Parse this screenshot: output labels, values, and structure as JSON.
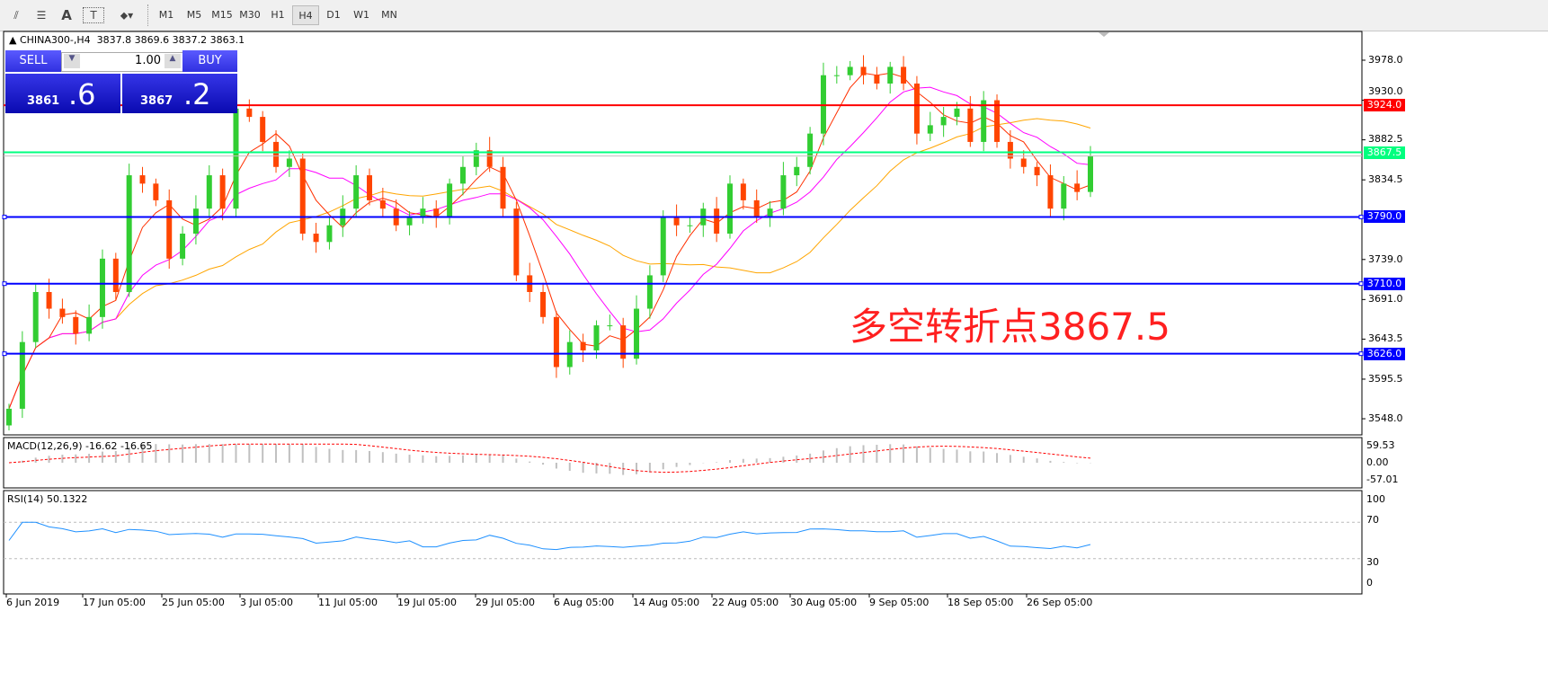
{
  "toolbar": {
    "tools": [
      "line-studies-icon",
      "fibonacci-icon",
      "text-icon",
      "text-label-icon",
      "arrows-icon"
    ],
    "timeframes": [
      "M1",
      "M5",
      "M15",
      "M30",
      "H1",
      "H4",
      "D1",
      "W1",
      "MN"
    ],
    "active": "H4"
  },
  "header": {
    "symbol": "CHINA300-,H4",
    "ohlc": "3837.8 3869.6 3837.2 3863.1"
  },
  "trade": {
    "sell": "SELL",
    "buy": "BUY",
    "lot": "1.00",
    "sell_small": "3861",
    "sell_big": ".6",
    "buy_small": "3867",
    "buy_big": ".2"
  },
  "annotation": "多空转折点3867.5",
  "colors": {
    "bull": "#32cd32",
    "bear": "#ff4500",
    "ma_fast": "#ff3000",
    "ma_mid": "#ff00ff",
    "ma_slow": "#ffa500",
    "resistance": "#ff0000",
    "pivot": "#00ff7f",
    "support": "#0000ff",
    "rsi": "#1e90ff",
    "macd_signal": "#ff0000"
  },
  "chart_data": {
    "type": "candlestick",
    "price_axis": {
      "ticks": [
        "3978.0",
        "3930.0",
        "3882.5",
        "3834.5",
        "3739.0",
        "3691.0",
        "3643.5",
        "3595.5",
        "3548.0"
      ],
      "range": [
        3548,
        3978
      ]
    },
    "x_labels": [
      "6 Jun 2019",
      "17 Jun 05:00",
      "25 Jun 05:00",
      "3 Jul 05:00",
      "11 Jul 05:00",
      "19 Jul 05:00",
      "29 Jul 05:00",
      "6 Aug 05:00",
      "14 Aug 05:00",
      "22 Aug 05:00",
      "30 Aug 05:00",
      "9 Sep 05:00",
      "18 Sep 05:00",
      "26 Sep 05:00"
    ],
    "closes": [
      3560,
      3640,
      3700,
      3680,
      3670,
      3650,
      3670,
      3740,
      3700,
      3840,
      3830,
      3810,
      3740,
      3770,
      3800,
      3840,
      3800,
      3920,
      3910,
      3880,
      3850,
      3860,
      3770,
      3760,
      3780,
      3800,
      3840,
      3810,
      3800,
      3780,
      3790,
      3800,
      3790,
      3830,
      3850,
      3870,
      3850,
      3800,
      3720,
      3700,
      3670,
      3610,
      3640,
      3630,
      3660,
      3660,
      3620,
      3680,
      3720,
      3790,
      3780,
      3780,
      3800,
      3770,
      3830,
      3810,
      3790,
      3800,
      3840,
      3850,
      3890,
      3960,
      3960,
      3970,
      3960,
      3950,
      3970,
      3950,
      3890,
      3900,
      3910,
      3920,
      3880,
      3930,
      3880,
      3860,
      3850,
      3840,
      3800,
      3830,
      3820,
      3863.1
    ],
    "hlines": [
      {
        "label": "3924.0",
        "value": 3924,
        "kind": "resistance"
      },
      {
        "label": "3867.5",
        "value": 3867.5,
        "kind": "pivot"
      },
      {
        "label": "3790.0",
        "value": 3790,
        "kind": "support"
      },
      {
        "label": "3710.0",
        "value": 3710,
        "kind": "support"
      },
      {
        "label": "3626.0",
        "value": 3626,
        "kind": "support"
      }
    ],
    "macd": {
      "label": "MACD(12,26,9) -16.62 -16.65",
      "ticks": [
        "59.53",
        "0.00",
        "-57.01"
      ],
      "range": [
        -57.01,
        59.53
      ]
    },
    "rsi": {
      "label": "RSI(14) 50.1322",
      "ticks": [
        "100",
        "70",
        "30",
        "0"
      ],
      "levels": [
        30,
        70
      ]
    }
  }
}
